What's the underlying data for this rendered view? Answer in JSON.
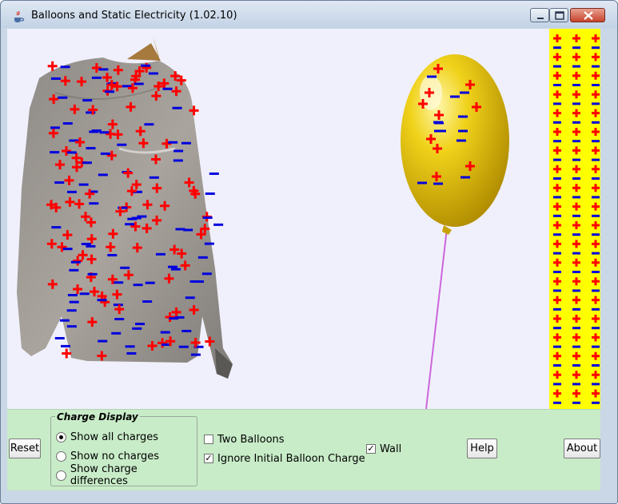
{
  "window": {
    "title": "Balloons and Static Electricity (1.02.10)"
  },
  "colors": {
    "plus": "#ff0000",
    "minus": "#0000dd",
    "wall": "#ffff00",
    "canvas": "#f0f0fc",
    "panel": "#c8ecc8",
    "balloon": "#e6c300",
    "string": "#cc66dd"
  },
  "charge_display": {
    "title": "Charge Display",
    "options": [
      {
        "label": "Show all charges",
        "selected": true
      },
      {
        "label": "Show no charges",
        "selected": false
      },
      {
        "label": "Show charge differences",
        "selected": false
      }
    ]
  },
  "controls": {
    "reset_label": "Reset",
    "two_balloons_label": "Two Balloons",
    "two_balloons_checked": false,
    "ignore_initial_label": "Ignore Initial Balloon Charge",
    "ignore_initial_checked": true,
    "wall_label": "Wall",
    "wall_checked": true,
    "help_label": "Help",
    "about_label": "About"
  },
  "icons": {
    "app": "java-cup-icon",
    "minimize": "minimize-icon",
    "maximize": "maximize-icon",
    "close": "close-icon"
  }
}
